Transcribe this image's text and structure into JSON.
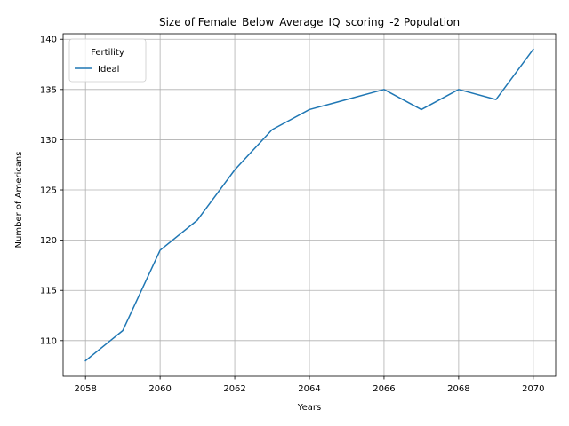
{
  "chart_data": {
    "type": "line",
    "title": "Size of Female_Below_Average_IQ_scoring_-2 Population",
    "xlabel": "Years",
    "ylabel": "Number of Americans",
    "x": [
      2058,
      2059,
      2060,
      2061,
      2062,
      2063,
      2064,
      2065,
      2066,
      2067,
      2068,
      2069,
      2070
    ],
    "series": [
      {
        "name": "Ideal",
        "color": "#1f77b4",
        "values": [
          108,
          111,
          119,
          122,
          127,
          131,
          133,
          134,
          135,
          133,
          135,
          134,
          139
        ]
      }
    ],
    "xlim": [
      2057.4,
      2070.6
    ],
    "ylim": [
      106.45,
      140.55
    ],
    "xticks": [
      "2058",
      "2060",
      "2062",
      "2064",
      "2066",
      "2068",
      "2070"
    ],
    "yticks": [
      "110",
      "115",
      "120",
      "125",
      "130",
      "135",
      "140"
    ],
    "grid": true,
    "legend": {
      "title": "Fertility",
      "placement": "top-left"
    }
  }
}
